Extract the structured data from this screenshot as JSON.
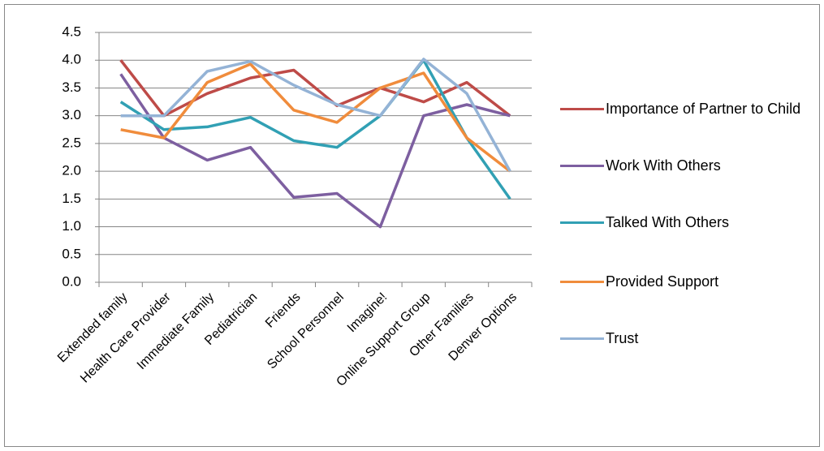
{
  "chart_data": {
    "type": "line",
    "categories": [
      "Extended family",
      "Health Care Provider",
      "Immediate Family",
      "Pediatrician",
      "Friends",
      "School Personnel",
      "Imagine!",
      "Online Support Group",
      "Other Families",
      "Denver Options"
    ],
    "series": [
      {
        "name": "Importance of Partner to Child",
        "color": "#be4b48",
        "values": [
          4.0,
          3.0,
          3.4,
          3.68,
          3.82,
          3.18,
          3.5,
          3.25,
          3.6,
          3.0
        ]
      },
      {
        "name": "Work With Others",
        "color": "#7d5fa0",
        "values": [
          3.75,
          2.6,
          2.2,
          2.43,
          1.53,
          1.6,
          1.0,
          3.0,
          3.2,
          3.0
        ]
      },
      {
        "name": "Talked With Others",
        "color": "#31a0b4",
        "values": [
          3.25,
          2.75,
          2.8,
          2.97,
          2.55,
          2.43,
          3.0,
          4.0,
          2.6,
          1.5
        ]
      },
      {
        "name": "Provided Support",
        "color": "#f08c3c",
        "values": [
          2.75,
          2.6,
          3.6,
          3.93,
          3.1,
          2.88,
          3.5,
          3.77,
          2.6,
          2.0
        ]
      },
      {
        "name": "Trust",
        "color": "#94b3d6",
        "values": [
          3.0,
          3.0,
          3.8,
          3.98,
          3.55,
          3.2,
          3.0,
          4.02,
          3.4,
          2.0
        ]
      }
    ],
    "ylim": [
      0,
      4.5
    ],
    "yticks": [
      {
        "value": 0,
        "label": "0.0"
      },
      0.5,
      {
        "value": 1,
        "label": "1.0"
      },
      1.5,
      {
        "value": 2,
        "label": "2.0"
      },
      2.5,
      {
        "value": 3,
        "label": "3.0"
      },
      3.5,
      {
        "value": 4,
        "label": "4.0"
      },
      4.5
    ],
    "grid": true,
    "legend": "right"
  }
}
